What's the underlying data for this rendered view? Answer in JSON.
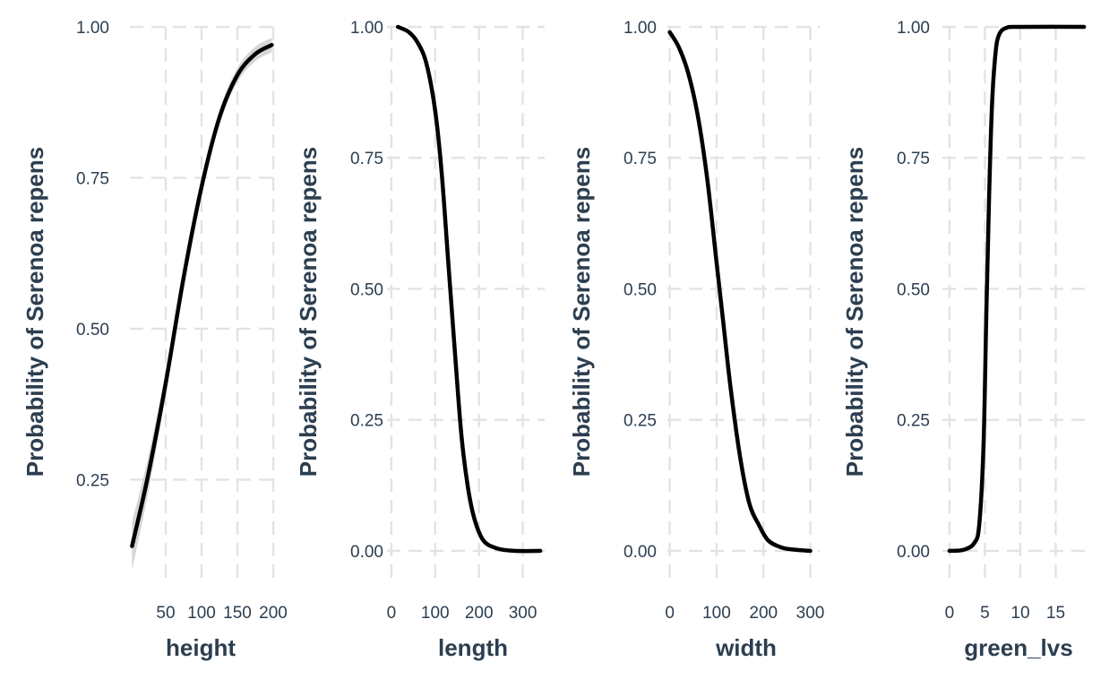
{
  "chart_data": [
    {
      "type": "line",
      "xlabel": "height",
      "ylabel": "Probability of Serenoa repens",
      "xlim": [
        0,
        200
      ],
      "ylim": [
        0.08,
        1.0
      ],
      "xticks": [
        50,
        100,
        150,
        200
      ],
      "xtick_labels": [
        "50",
        "100",
        "150",
        "200"
      ],
      "yticks": [
        0.25,
        0.5,
        0.75,
        1.0
      ],
      "ytick_labels": [
        "0.25",
        "0.50",
        "0.75",
        "1.00"
      ],
      "grid": true,
      "confidence_band": true,
      "x": [
        3,
        25,
        50,
        75,
        100,
        125,
        150,
        175,
        198
      ],
      "y": [
        0.14,
        0.255,
        0.41,
        0.585,
        0.735,
        0.85,
        0.92,
        0.955,
        0.97
      ],
      "band_width": [
        0.04,
        0.03,
        0.02,
        0.015,
        0.012,
        0.012,
        0.012,
        0.012,
        0.012
      ]
    },
    {
      "type": "line",
      "xlabel": "length",
      "ylabel": "Probability of Serenoa repens",
      "xlim": [
        -10,
        350
      ],
      "ylim": [
        -0.06,
        1.0
      ],
      "xticks": [
        0,
        100,
        200,
        300
      ],
      "xtick_labels": [
        "0",
        "100",
        "200",
        "300"
      ],
      "yticks": [
        0.0,
        0.25,
        0.5,
        0.75,
        1.0
      ],
      "ytick_labels": [
        "0.00",
        "0.25",
        "0.50",
        "0.75",
        "1.00"
      ],
      "grid": true,
      "confidence_band": false,
      "x": [
        15,
        40,
        60,
        80,
        100,
        115,
        130,
        145,
        160,
        175,
        190,
        210,
        240,
        280,
        340
      ],
      "y": [
        1.0,
        0.99,
        0.97,
        0.93,
        0.84,
        0.72,
        0.55,
        0.38,
        0.22,
        0.12,
        0.06,
        0.02,
        0.005,
        0.0,
        0.0
      ]
    },
    {
      "type": "line",
      "xlabel": "width",
      "ylabel": "Probability of Serenoa repens",
      "xlim": [
        -5,
        320
      ],
      "ylim": [
        -0.06,
        1.0
      ],
      "xticks": [
        0,
        100,
        200,
        300
      ],
      "xtick_labels": [
        "0",
        "100",
        "200",
        "300"
      ],
      "yticks": [
        0.0,
        0.25,
        0.5,
        0.75,
        1.0
      ],
      "ytick_labels": [
        "0.00",
        "0.25",
        "0.50",
        "0.75",
        "1.00"
      ],
      "grid": true,
      "confidence_band": false,
      "x": [
        0,
        20,
        40,
        60,
        80,
        100,
        115,
        130,
        150,
        170,
        190,
        210,
        240,
        270,
        300
      ],
      "y": [
        0.99,
        0.96,
        0.91,
        0.83,
        0.71,
        0.55,
        0.43,
        0.31,
        0.18,
        0.09,
        0.05,
        0.02,
        0.006,
        0.002,
        0.0
      ]
    },
    {
      "type": "line",
      "xlabel": "green_lvs",
      "ylabel": "Probability of Serenoa repens",
      "xlim": [
        -1,
        20
      ],
      "ylim": [
        -0.06,
        1.0
      ],
      "xticks": [
        0,
        5,
        10,
        15
      ],
      "xtick_labels": [
        "0",
        "5",
        "10",
        "15"
      ],
      "yticks": [
        0.0,
        0.25,
        0.5,
        0.75,
        1.0
      ],
      "ytick_labels": [
        "0.00",
        "0.25",
        "0.50",
        "0.75",
        "1.00"
      ],
      "grid": true,
      "confidence_band": false,
      "x": [
        0,
        2,
        3.5,
        4.2,
        4.8,
        5.2,
        5.6,
        6.0,
        6.5,
        7.0,
        8.0,
        10,
        19
      ],
      "y": [
        0.0,
        0.002,
        0.015,
        0.05,
        0.2,
        0.45,
        0.68,
        0.85,
        0.95,
        0.985,
        0.998,
        1.0,
        1.0
      ]
    }
  ]
}
